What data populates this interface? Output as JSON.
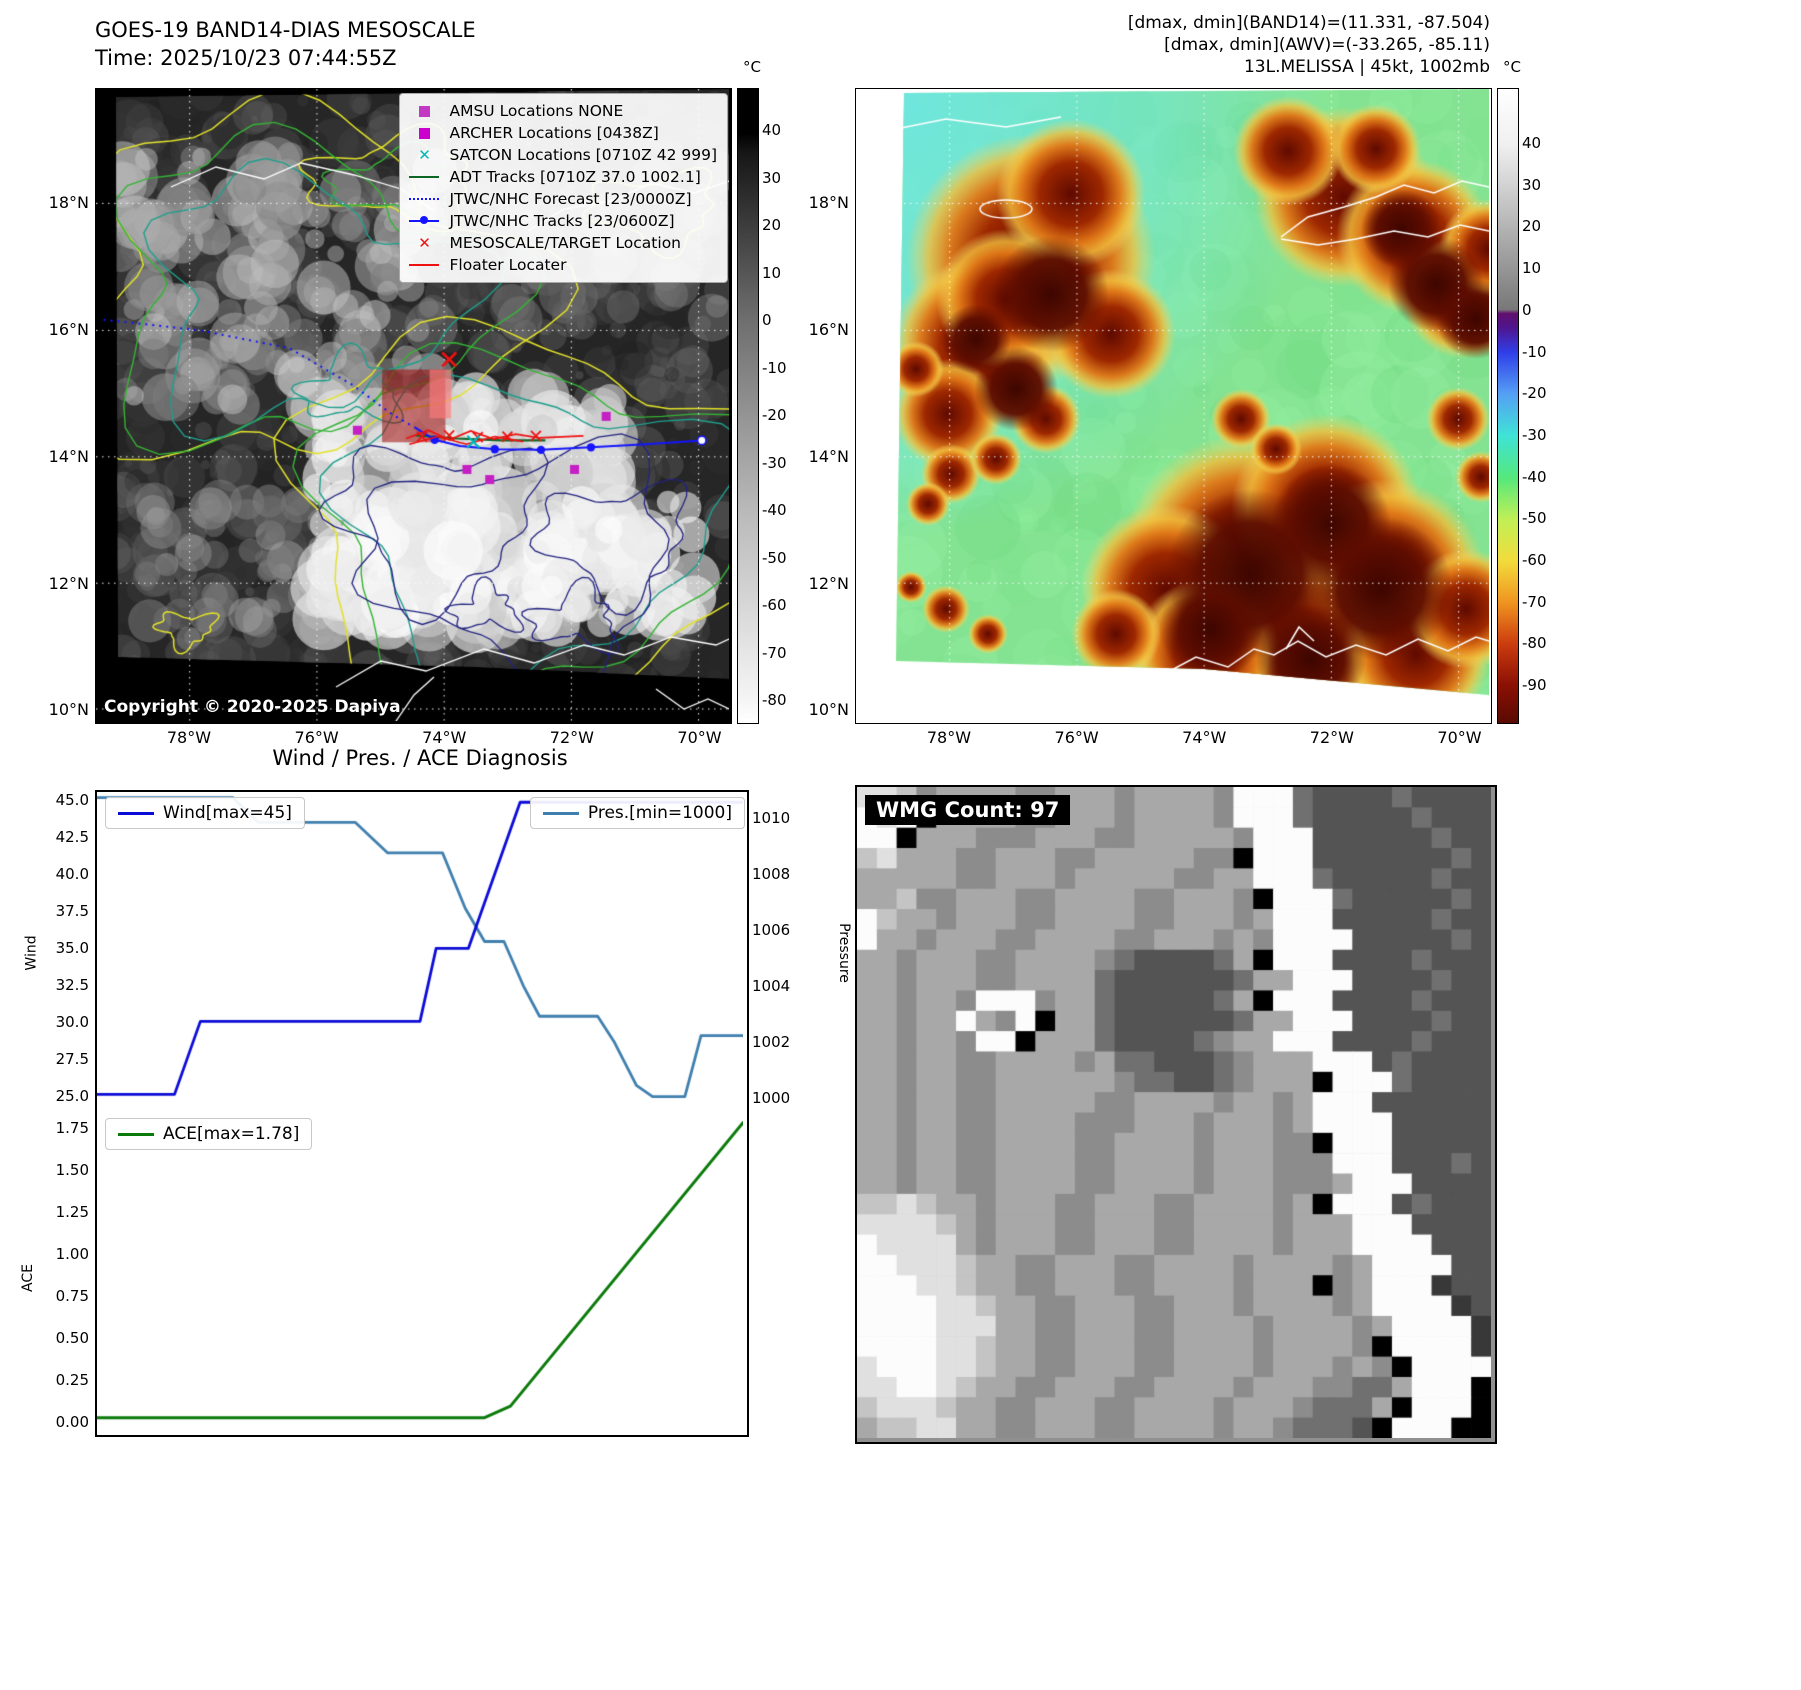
{
  "band14": {
    "title": "GOES-19 BAND14-DIAS MESOSCALE",
    "subtitle": "Time: 2025/10/23 07:44:55Z",
    "copyright": "Copyright © 2020-2025 Dapiya",
    "colorbar": {
      "label": "°C",
      "ticks": [
        40,
        30,
        20,
        10,
        0,
        -10,
        -20,
        -30,
        -40,
        -50,
        -60,
        -70,
        -80
      ]
    },
    "x_ticks": [
      "78°W",
      "76°W",
      "74°W",
      "72°W",
      "70°W"
    ],
    "y_ticks": [
      "18°N",
      "16°N",
      "14°N",
      "12°N",
      "10°N"
    ],
    "legend": [
      {
        "label": "AMSU Locations NONE",
        "marker": "square",
        "color": "#c338c3"
      },
      {
        "label": "ARCHER Locations [0438Z]",
        "marker": "square",
        "color": "#cc00cc"
      },
      {
        "label": "SATCON Locations [0710Z 42 999]",
        "marker": "x",
        "color": "#00b8b8"
      },
      {
        "label": "ADT Tracks [0710Z 37.0 1002.1]",
        "marker": "line",
        "color": "#0b6623"
      },
      {
        "label": "JTWC/NHC Forecast [23/0000Z]",
        "marker": "dotted",
        "color": "#1515ff"
      },
      {
        "label": "JTWC/NHC Tracks [23/0600Z]",
        "marker": "line-dot",
        "color": "#1515ff"
      },
      {
        "label": "MESOSCALE/TARGET Location",
        "marker": "x",
        "color": "#ee1111"
      },
      {
        "label": "Floater Locater",
        "marker": "line",
        "color": "#ee1111"
      }
    ],
    "overlays": {
      "forecast_track": [
        [
          0.012,
          0.365
        ],
        [
          0.165,
          0.382
        ],
        [
          0.305,
          0.41
        ],
        [
          0.405,
          0.468
        ],
        [
          0.468,
          0.515
        ],
        [
          0.503,
          0.535
        ]
      ],
      "observed_track": [
        [
          0.503,
          0.535
        ],
        [
          0.535,
          0.555
        ],
        [
          0.575,
          0.565
        ],
        [
          0.63,
          0.57
        ],
        [
          0.703,
          0.571
        ],
        [
          0.782,
          0.567
        ],
        [
          0.868,
          0.562
        ],
        [
          0.957,
          0.556
        ]
      ],
      "track_markers": [
        [
          0.535,
          0.555
        ],
        [
          0.63,
          0.57
        ],
        [
          0.703,
          0.571
        ],
        [
          0.782,
          0.567
        ]
      ],
      "open_marker": [
        0.957,
        0.556
      ],
      "adt_track": [
        [
          0.505,
          0.548
        ],
        [
          0.57,
          0.553
        ],
        [
          0.64,
          0.556
        ],
        [
          0.71,
          0.556
        ]
      ],
      "floater": [
        [
          0.49,
          0.553
        ],
        [
          0.525,
          0.54
        ],
        [
          0.558,
          0.555
        ],
        [
          0.592,
          0.541
        ],
        [
          0.628,
          0.554
        ],
        [
          0.663,
          0.546
        ],
        [
          0.7,
          0.552
        ],
        [
          0.77,
          0.549
        ]
      ],
      "floater2": [
        [
          0.495,
          0.562
        ],
        [
          0.54,
          0.55
        ],
        [
          0.585,
          0.562
        ],
        [
          0.63,
          0.55
        ],
        [
          0.675,
          0.558
        ]
      ],
      "floater_x": [
        [
          0.515,
          0.55
        ],
        [
          0.558,
          0.548
        ],
        [
          0.603,
          0.551
        ],
        [
          0.65,
          0.55
        ],
        [
          0.695,
          0.549
        ]
      ],
      "target_x": [
        0.558,
        0.428
      ],
      "satcon_x": [
        0.596,
        0.558
      ],
      "amsu_squares": [
        [
          0.413,
          0.54
        ],
        [
          0.586,
          0.602
        ],
        [
          0.622,
          0.618
        ],
        [
          0.756,
          0.602
        ],
        [
          0.806,
          0.518
        ]
      ],
      "target_box": [
        0.452,
        0.444,
        0.1,
        0.115
      ],
      "target_box2": [
        0.527,
        0.444,
        0.034,
        0.077
      ]
    }
  },
  "awv": {
    "header": [
      "[dmax, dmin](BAND14)=(11.331, -87.504)",
      "[dmax, dmin](AWV)=(-33.265, -85.11)",
      "13L.MELISSA | 45kt, 1002mb"
    ],
    "colorbar": {
      "label": "°C",
      "ticks": [
        40,
        30,
        20,
        10,
        0,
        -10,
        -20,
        -30,
        -40,
        -50,
        -60,
        -70,
        -80,
        -90
      ]
    },
    "x_ticks": [
      "78°W",
      "76°W",
      "74°W",
      "72°W",
      "70°W"
    ],
    "y_ticks": [
      "18°N",
      "16°N",
      "14°N",
      "12°N",
      "10°N"
    ]
  },
  "diagnosis": {
    "title": "Wind / Pres. / ACE Diagnosis"
  },
  "wmg": {
    "label": "WMG Count: 97",
    "grid": [
      "88756666556665666659994333343333",
      "98906666556665666659994333334333",
      "99066655566655666665999333333433",
      "78666556665566666550999333333343",
      "66666556665666665566999433333433",
      "66755666556666556665099943333343",
      "97665666556666556665699933333433",
      "96656665566665566656599993333343",
      "66566655666654333346099933334333",
      "66566655666643333334669993333433",
      "66566599956643333346099933334333",
      "66566965906643333334669993333433",
      "66566599066643333456699933334333",
      "66566556666564433345666999343333",
      "66566556666665443345666099943333",
      "66566556666655666656656999333333",
      "66566556666555666566656999933333",
      "66566556666556666566655099933333",
      "66566556666556666566655599933343",
      "66566556666556666566655569993333",
      "77876656665566655666656099934333",
      "88887656665566655666656669993333",
      "98888656665566655666656669999333",
      "99888766556665566665666656999933",
      "99988766556665566665666056999233",
      "99998876655666556665666656999923",
      "99998886655666556666566665699992",
      "99998876655666556666566665099992",
      "89998876655666556666566656509999",
      "88998766556665566665666554469990",
      "78887665566655666656665444609990",
      "67788665566655666656654443099900"
    ]
  },
  "chart_data": [
    {
      "type": "line",
      "title": "Wind / Pres. / ACE Diagnosis",
      "panel": "wind-pressure",
      "series": [
        {
          "name": "Wind[max=45]",
          "color": "#0b0bd6",
          "axis": "left",
          "x": [
            0,
            0.12,
            0.16,
            0.5,
            0.525,
            0.575,
            0.655,
            1.0
          ],
          "y": [
            25,
            25,
            30,
            30,
            35,
            35,
            45,
            45
          ]
        },
        {
          "name": "Pres.[min=1000]",
          "color": "#3f7fae",
          "axis": "right",
          "x": [
            0,
            0.21,
            0.25,
            0.4,
            0.45,
            0.535,
            0.57,
            0.6,
            0.63,
            0.66,
            0.685,
            0.775,
            0.8,
            0.835,
            0.86,
            0.91,
            0.935,
            1.0
          ],
          "y": [
            1010.8,
            1010.8,
            1009.9,
            1009.9,
            1008.8,
            1008.8,
            1006.8,
            1005.6,
            1005.6,
            1004.0,
            1002.9,
            1002.9,
            1002.0,
            1000.4,
            1000.0,
            1000.0,
            1002.2,
            1002.2
          ]
        }
      ],
      "left_axis": {
        "label": "Wind",
        "ticks": [
          45.0,
          42.5,
          40.0,
          37.5,
          35.0,
          32.5,
          30.0,
          27.5,
          25.0
        ],
        "range": [
          24.0,
          45.7
        ],
        "decimals": 1
      },
      "right_axis": {
        "label": "Pressure",
        "ticks": [
          1010,
          1008,
          1006,
          1004,
          1002,
          1000
        ],
        "range": [
          999.55,
          1011.0
        ],
        "decimals": 0
      },
      "x_range": [
        0,
        1
      ],
      "grid": false,
      "legend_position": "top-left / top-right"
    },
    {
      "type": "line",
      "panel": "ace",
      "series": [
        {
          "name": "ACE[max=1.78]",
          "color": "#0a7a0a",
          "axis": "left",
          "x": [
            0,
            0.6,
            0.64,
            1.0
          ],
          "y": [
            0.0,
            0.0,
            0.07,
            1.78
          ]
        }
      ],
      "left_axis": {
        "label": "ACE",
        "ticks": [
          1.75,
          1.5,
          1.25,
          1.0,
          0.75,
          0.5,
          0.25,
          0.0
        ],
        "range": [
          -0.08,
          1.85
        ],
        "decimals": 2
      },
      "x_range": [
        0,
        1
      ],
      "grid": false,
      "legend_position": "top-left"
    }
  ]
}
